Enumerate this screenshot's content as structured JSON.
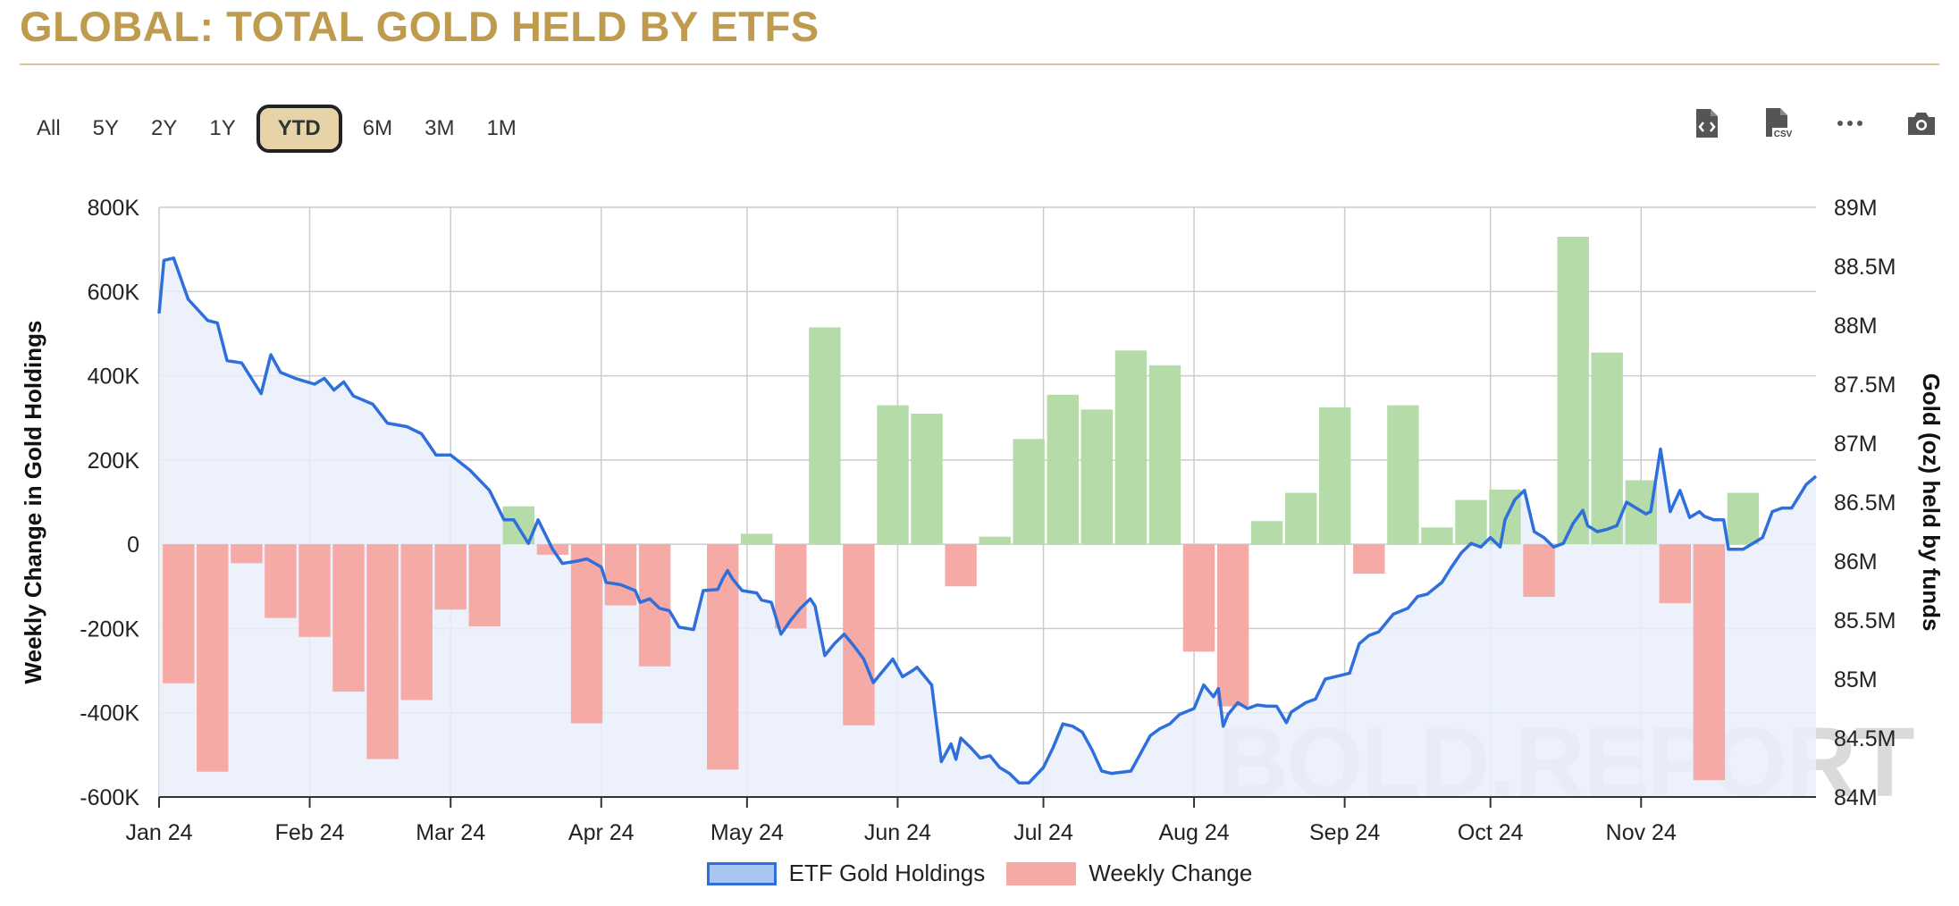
{
  "title": "GLOBAL: TOTAL GOLD HELD BY ETFS",
  "range_buttons": [
    "All",
    "5Y",
    "2Y",
    "1Y",
    "YTD",
    "6M",
    "3M",
    "1M"
  ],
  "active_range": "YTD",
  "toolbar": {
    "icons": [
      "code-file-icon",
      "csv-file-icon",
      "more-options-icon",
      "camera-icon"
    ],
    "csv_label": "CSV",
    "more_label": "···"
  },
  "watermark": "BOLD.REPORT",
  "colors": {
    "title": "#bf9b4e",
    "line": "#2f6fdc",
    "area": "#e9effb",
    "positive_bar": "#b5dba9",
    "negative_bar": "#f6aaa6",
    "grid": "#cccccc"
  },
  "chart_data": {
    "type": "bar+line",
    "x_ticks": [
      "Jan 24",
      "Feb 24",
      "Mar 24",
      "Apr 24",
      "May 24",
      "Jun 24",
      "Jul 24",
      "Aug 24",
      "Sep 24",
      "Oct 24",
      "Nov 24"
    ],
    "left_axis": {
      "label": "Weekly Change in Gold Holdings",
      "ticks": [
        "800K",
        "600K",
        "400K",
        "200K",
        "0",
        "-200K",
        "-400K",
        "-600K"
      ],
      "range": [
        -600000,
        800000
      ]
    },
    "right_axis": {
      "label": "Gold (oz) held by funds",
      "ticks": [
        "89M",
        "88.5M",
        "88M",
        "87.5M",
        "87M",
        "86.5M",
        "86M",
        "85.5M",
        "85M",
        "84.5M",
        "84M"
      ],
      "range": [
        84000000,
        89000000
      ]
    },
    "series": [
      {
        "name": "ETF Gold Holdings",
        "type": "area-line",
        "axis": "right",
        "points": [
          [
            "2024-01-01",
            88.1
          ],
          [
            "2024-01-02",
            88.55
          ],
          [
            "2024-01-04",
            88.57
          ],
          [
            "2024-01-07",
            88.22
          ],
          [
            "2024-01-11",
            88.04
          ],
          [
            "2024-01-13",
            88.02
          ],
          [
            "2024-01-15",
            87.7
          ],
          [
            "2024-01-18",
            87.68
          ],
          [
            "2024-01-22",
            87.42
          ],
          [
            "2024-01-24",
            87.75
          ],
          [
            "2024-01-26",
            87.6
          ],
          [
            "2024-01-29",
            87.55
          ],
          [
            "2024-02-02",
            87.5
          ],
          [
            "2024-02-04",
            87.55
          ],
          [
            "2024-02-06",
            87.45
          ],
          [
            "2024-02-08",
            87.52
          ],
          [
            "2024-02-10",
            87.4
          ],
          [
            "2024-02-14",
            87.33
          ],
          [
            "2024-02-17",
            87.17
          ],
          [
            "2024-02-21",
            87.14
          ],
          [
            "2024-02-24",
            87.08
          ],
          [
            "2024-02-27",
            86.9
          ],
          [
            "2024-03-01",
            86.9
          ],
          [
            "2024-03-05",
            86.77
          ],
          [
            "2024-03-09",
            86.6
          ],
          [
            "2024-03-12",
            86.35
          ],
          [
            "2024-03-14",
            86.35
          ],
          [
            "2024-03-17",
            86.15
          ],
          [
            "2024-03-19",
            86.35
          ],
          [
            "2024-03-22",
            86.1
          ],
          [
            "2024-03-24",
            85.98
          ],
          [
            "2024-03-27",
            86.0
          ],
          [
            "2024-03-29",
            86.02
          ],
          [
            "2024-04-01",
            85.95
          ],
          [
            "2024-04-02",
            85.82
          ],
          [
            "2024-04-05",
            85.8
          ],
          [
            "2024-04-08",
            85.75
          ],
          [
            "2024-04-09",
            85.65
          ],
          [
            "2024-04-11",
            85.68
          ],
          [
            "2024-04-13",
            85.6
          ],
          [
            "2024-04-15",
            85.58
          ],
          [
            "2024-04-17",
            85.44
          ],
          [
            "2024-04-20",
            85.42
          ],
          [
            "2024-04-22",
            85.75
          ],
          [
            "2024-04-25",
            85.76
          ],
          [
            "2024-04-26",
            85.85
          ],
          [
            "2024-04-27",
            85.92
          ],
          [
            "2024-04-28",
            85.85
          ],
          [
            "2024-04-30",
            85.75
          ],
          [
            "2024-05-03",
            85.73
          ],
          [
            "2024-05-04",
            85.67
          ],
          [
            "2024-05-06",
            85.65
          ],
          [
            "2024-05-08",
            85.38
          ],
          [
            "2024-05-10",
            85.5
          ],
          [
            "2024-05-12",
            85.6
          ],
          [
            "2024-05-14",
            85.68
          ],
          [
            "2024-05-15",
            85.62
          ],
          [
            "2024-05-17",
            85.2
          ],
          [
            "2024-05-19",
            85.3
          ],
          [
            "2024-05-21",
            85.38
          ],
          [
            "2024-05-23",
            85.28
          ],
          [
            "2024-05-25",
            85.17
          ],
          [
            "2024-05-27",
            84.97
          ],
          [
            "2024-05-29",
            85.07
          ],
          [
            "2024-05-31",
            85.17
          ],
          [
            "2024-06-02",
            85.02
          ],
          [
            "2024-06-04",
            85.07
          ],
          [
            "2024-06-05",
            85.1
          ],
          [
            "2024-06-06",
            85.05
          ],
          [
            "2024-06-08",
            84.95
          ],
          [
            "2024-06-10",
            84.3
          ],
          [
            "2024-06-12",
            84.45
          ],
          [
            "2024-06-13",
            84.32
          ],
          [
            "2024-06-14",
            84.5
          ],
          [
            "2024-06-16",
            84.42
          ],
          [
            "2024-06-18",
            84.33
          ],
          [
            "2024-06-20",
            84.35
          ],
          [
            "2024-06-22",
            84.25
          ],
          [
            "2024-06-24",
            84.2
          ],
          [
            "2024-06-26",
            84.12
          ],
          [
            "2024-06-28",
            84.12
          ],
          [
            "2024-07-01",
            84.25
          ],
          [
            "2024-07-03",
            84.42
          ],
          [
            "2024-07-05",
            84.62
          ],
          [
            "2024-07-07",
            84.6
          ],
          [
            "2024-07-09",
            84.55
          ],
          [
            "2024-07-11",
            84.4
          ],
          [
            "2024-07-13",
            84.22
          ],
          [
            "2024-07-15",
            84.2
          ],
          [
            "2024-07-19",
            84.22
          ],
          [
            "2024-07-23",
            84.52
          ],
          [
            "2024-07-25",
            84.58
          ],
          [
            "2024-07-27",
            84.62
          ],
          [
            "2024-07-29",
            84.7
          ],
          [
            "2024-08-01",
            84.75
          ],
          [
            "2024-08-03",
            84.95
          ],
          [
            "2024-08-05",
            84.85
          ],
          [
            "2024-08-06",
            84.92
          ],
          [
            "2024-08-07",
            84.6
          ],
          [
            "2024-08-08",
            84.7
          ],
          [
            "2024-08-10",
            84.8
          ],
          [
            "2024-08-12",
            84.75
          ],
          [
            "2024-08-14",
            84.78
          ],
          [
            "2024-08-16",
            84.77
          ],
          [
            "2024-08-18",
            84.77
          ],
          [
            "2024-08-20",
            84.63
          ],
          [
            "2024-08-21",
            84.72
          ],
          [
            "2024-08-24",
            84.8
          ],
          [
            "2024-08-26",
            84.83
          ],
          [
            "2024-08-28",
            85.0
          ],
          [
            "2024-08-30",
            85.02
          ],
          [
            "2024-09-02",
            85.05
          ],
          [
            "2024-09-04",
            85.3
          ],
          [
            "2024-09-06",
            85.37
          ],
          [
            "2024-09-08",
            85.4
          ],
          [
            "2024-09-11",
            85.55
          ],
          [
            "2024-09-14",
            85.6
          ],
          [
            "2024-09-16",
            85.7
          ],
          [
            "2024-09-18",
            85.72
          ],
          [
            "2024-09-21",
            85.82
          ],
          [
            "2024-09-23",
            85.95
          ],
          [
            "2024-09-25",
            86.07
          ],
          [
            "2024-09-27",
            86.15
          ],
          [
            "2024-09-29",
            86.12
          ],
          [
            "2024-10-01",
            86.2
          ],
          [
            "2024-10-03",
            86.12
          ],
          [
            "2024-10-04",
            86.35
          ],
          [
            "2024-10-06",
            86.52
          ],
          [
            "2024-10-08",
            86.6
          ],
          [
            "2024-10-10",
            86.25
          ],
          [
            "2024-10-12",
            86.2
          ],
          [
            "2024-10-14",
            86.12
          ],
          [
            "2024-10-16",
            86.15
          ],
          [
            "2024-10-18",
            86.32
          ],
          [
            "2024-10-20",
            86.43
          ],
          [
            "2024-10-21",
            86.3
          ],
          [
            "2024-10-23",
            86.25
          ],
          [
            "2024-10-25",
            86.27
          ],
          [
            "2024-10-27",
            86.3
          ],
          [
            "2024-10-29",
            86.5
          ],
          [
            "2024-10-31",
            86.45
          ],
          [
            "2024-11-02",
            86.4
          ],
          [
            "2024-11-03",
            86.42
          ],
          [
            "2024-11-05",
            86.95
          ],
          [
            "2024-11-07",
            86.42
          ],
          [
            "2024-11-09",
            86.6
          ],
          [
            "2024-11-11",
            86.37
          ],
          [
            "2024-11-13",
            86.42
          ],
          [
            "2024-11-14",
            86.38
          ],
          [
            "2024-11-16",
            86.35
          ],
          [
            "2024-11-18",
            86.35
          ],
          [
            "2024-11-19",
            86.1
          ],
          [
            "2024-11-22",
            86.1
          ],
          [
            "2024-11-24",
            86.15
          ],
          [
            "2024-11-26",
            86.2
          ],
          [
            "2024-11-28",
            86.42
          ],
          [
            "2024-11-30",
            86.45
          ],
          [
            "2024-12-02",
            86.45
          ],
          [
            "2024-12-05",
            86.65
          ],
          [
            "2024-12-07",
            86.72
          ]
        ]
      },
      {
        "name": "Weekly Change",
        "type": "bar",
        "axis": "left",
        "points": [
          [
            "2024-01-05",
            -330000
          ],
          [
            "2024-01-12",
            -540000
          ],
          [
            "2024-01-19",
            -45000
          ],
          [
            "2024-01-26",
            -175000
          ],
          [
            "2024-02-02",
            -220000
          ],
          [
            "2024-02-09",
            -350000
          ],
          [
            "2024-02-16",
            -510000
          ],
          [
            "2024-02-23",
            -370000
          ],
          [
            "2024-03-01",
            -155000
          ],
          [
            "2024-03-08",
            -195000
          ],
          [
            "2024-03-15",
            90000
          ],
          [
            "2024-03-22",
            -25000
          ],
          [
            "2024-03-29",
            -425000
          ],
          [
            "2024-04-05",
            -145000
          ],
          [
            "2024-04-12",
            -290000
          ],
          [
            "2024-04-19",
            0
          ],
          [
            "2024-04-26",
            -535000
          ],
          [
            "2024-05-03",
            25000
          ],
          [
            "2024-05-10",
            -200000
          ],
          [
            "2024-05-17",
            515000
          ],
          [
            "2024-05-24",
            -430000
          ],
          [
            "2024-05-31",
            330000
          ],
          [
            "2024-06-07",
            310000
          ],
          [
            "2024-06-14",
            -100000
          ],
          [
            "2024-06-21",
            18000
          ],
          [
            "2024-06-28",
            250000
          ],
          [
            "2024-07-05",
            355000
          ],
          [
            "2024-07-12",
            320000
          ],
          [
            "2024-07-19",
            460000
          ],
          [
            "2024-07-26",
            425000
          ],
          [
            "2024-08-02",
            -255000
          ],
          [
            "2024-08-09",
            -385000
          ],
          [
            "2024-08-16",
            55000
          ],
          [
            "2024-08-23",
            122000
          ],
          [
            "2024-08-30",
            325000
          ],
          [
            "2024-09-06",
            -70000
          ],
          [
            "2024-09-13",
            330000
          ],
          [
            "2024-09-20",
            40000
          ],
          [
            "2024-09-27",
            105000
          ],
          [
            "2024-10-04",
            130000
          ],
          [
            "2024-10-11",
            -125000
          ],
          [
            "2024-10-18",
            730000
          ],
          [
            "2024-10-25",
            455000
          ],
          [
            "2024-11-01",
            152000
          ],
          [
            "2024-11-08",
            -140000
          ],
          [
            "2024-11-15",
            -560000
          ],
          [
            "2024-11-22",
            122000
          ]
        ]
      }
    ],
    "legend": [
      {
        "name": "ETF Gold Holdings",
        "swatch": "area"
      },
      {
        "name": "Weekly Change",
        "swatch": "bar"
      }
    ],
    "grid": true,
    "legend_placement": "bottom"
  }
}
